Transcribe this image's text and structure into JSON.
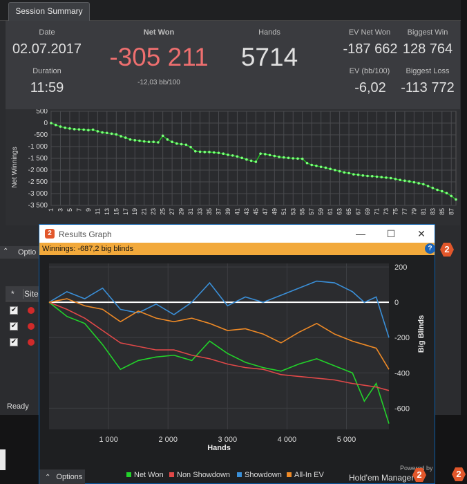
{
  "session_summary": {
    "tab_label": "Session Summary",
    "date_label": "Date",
    "date_value": "02.07.2017",
    "duration_label": "Duration",
    "duration_value": "11:59",
    "net_won_label": "Net Won",
    "net_won_value": "-305 211",
    "net_won_sub": "-12,03 bb/100",
    "hands_label": "Hands",
    "hands_value": "5714",
    "ev_net_won_label": "EV Net Won",
    "ev_net_won_value": "-187 662",
    "biggest_win_label": "Biggest Win",
    "biggest_win_value": "128 764",
    "ev_bb_label": "EV (bb/100)",
    "ev_bb_value": "-6,02",
    "biggest_loss_label": "Biggest Loss",
    "biggest_loss_value": "-113 772"
  },
  "left_panel": {
    "options_label": "Optio",
    "col_star": "*",
    "col_site": "Site",
    "check_glyph": "✔",
    "status": "Ready"
  },
  "results_window": {
    "title": "Results Graph",
    "logo_text": "2",
    "minimize": "—",
    "maximize": "☐",
    "close": "✕",
    "winnings_text": "Winnings: -687,2 big blinds",
    "help": "?",
    "legend": [
      "Net Won",
      "Non Showdown",
      "Showdown",
      "All-In EV"
    ],
    "powered_by": "Powered by",
    "brand": "Hold'em Manager",
    "options_label": "Options",
    "options_chevron": "⌃"
  },
  "colors": {
    "net_won": "#22d22a",
    "non_showdown": "#e04848",
    "showdown": "#3a8fd8",
    "all_in_ev": "#ef8a26",
    "small_graph_line": "#1bc31b",
    "small_graph_points": "#7dff7d"
  },
  "chart_data": [
    {
      "type": "line",
      "xlabel": "",
      "ylabel": "Net Winnings",
      "ylim": [
        -3500,
        500
      ],
      "yticks": [
        500,
        0,
        -500,
        -1000,
        -1500,
        -2000,
        -2500,
        -3000,
        -3500
      ],
      "xticks": [
        1,
        3,
        5,
        7,
        9,
        11,
        13,
        15,
        17,
        19,
        21,
        23,
        25,
        27,
        29,
        31,
        33,
        35,
        37,
        39,
        41,
        43,
        45,
        47,
        49,
        51,
        53,
        55,
        57,
        59,
        61,
        63,
        65,
        67,
        69,
        71,
        73,
        75,
        77,
        79,
        81,
        83,
        85,
        87
      ],
      "grid": true,
      "x": [
        1,
        2,
        3,
        4,
        5,
        6,
        7,
        8,
        9,
        10,
        11,
        12,
        13,
        14,
        15,
        16,
        17,
        18,
        19,
        20,
        21,
        22,
        23,
        24,
        25,
        26,
        27,
        28,
        29,
        30,
        31,
        32,
        33,
        34,
        35,
        36,
        37,
        38,
        39,
        40,
        41,
        42,
        43,
        44,
        45,
        46,
        47,
        48,
        49,
        50,
        51,
        52,
        53,
        54,
        55,
        56,
        57,
        58,
        59,
        60,
        61,
        62,
        63,
        64,
        65,
        66,
        67,
        68,
        69,
        70,
        71,
        72,
        73,
        74,
        75,
        76,
        77,
        78,
        79,
        80,
        81,
        82,
        83,
        84,
        85,
        86,
        87,
        88
      ],
      "y": [
        0,
        -80,
        -150,
        -200,
        -230,
        -260,
        -270,
        -280,
        -300,
        -280,
        -350,
        -400,
        -420,
        -450,
        -480,
        -560,
        -620,
        -700,
        -730,
        -750,
        -780,
        -800,
        -800,
        -820,
        -540,
        -700,
        -800,
        -870,
        -900,
        -920,
        -1020,
        -1200,
        -1220,
        -1230,
        -1230,
        -1250,
        -1270,
        -1300,
        -1350,
        -1380,
        -1420,
        -1480,
        -1550,
        -1600,
        -1650,
        -1300,
        -1320,
        -1360,
        -1400,
        -1440,
        -1460,
        -1480,
        -1500,
        -1510,
        -1520,
        -1700,
        -1780,
        -1820,
        -1860,
        -1900,
        -1950,
        -2000,
        -2050,
        -2100,
        -2130,
        -2180,
        -2200,
        -2230,
        -2250,
        -2260,
        -2280,
        -2300,
        -2320,
        -2340,
        -2380,
        -2420,
        -2450,
        -2480,
        -2520,
        -2560,
        -2600,
        -2680,
        -2760,
        -2840,
        -2900,
        -2980,
        -3100,
        -3250
      ]
    },
    {
      "type": "line",
      "xlabel": "Hands",
      "ylabel": "Big Blinds",
      "xlim": [
        0,
        5714
      ],
      "ylim": [
        -720,
        220
      ],
      "xticks": [
        1000,
        2000,
        3000,
        4000,
        5000
      ],
      "xtick_labels": [
        "1 000",
        "2 000",
        "3 000",
        "4 000",
        "5 000"
      ],
      "yticks": [
        200,
        0,
        -200,
        -400,
        -600
      ],
      "grid": true,
      "x": [
        0,
        300,
        600,
        900,
        1200,
        1500,
        1800,
        2100,
        2400,
        2700,
        3000,
        3300,
        3600,
        3900,
        4200,
        4500,
        4800,
        5100,
        5300,
        5500,
        5714
      ],
      "series": [
        {
          "name": "Net Won",
          "values": [
            0,
            -80,
            -120,
            -240,
            -380,
            -330,
            -310,
            -300,
            -330,
            -220,
            -290,
            -340,
            -370,
            -390,
            -350,
            -320,
            -360,
            -400,
            -560,
            -460,
            -687
          ]
        },
        {
          "name": "Non Showdown",
          "values": [
            0,
            -40,
            -90,
            -160,
            -230,
            -250,
            -270,
            -270,
            -300,
            -320,
            -350,
            -370,
            -380,
            -410,
            -420,
            -430,
            -440,
            -460,
            -470,
            -480,
            -500
          ]
        },
        {
          "name": "Showdown",
          "values": [
            0,
            60,
            20,
            80,
            -40,
            -60,
            -10,
            -70,
            0,
            110,
            -20,
            30,
            0,
            40,
            80,
            120,
            110,
            60,
            0,
            30,
            -200
          ]
        },
        {
          "name": "All-In EV",
          "values": [
            0,
            20,
            -20,
            -40,
            -110,
            -50,
            -90,
            -110,
            -90,
            -120,
            -160,
            -150,
            -180,
            -230,
            -170,
            -120,
            -180,
            -220,
            -240,
            -260,
            -380
          ]
        }
      ]
    }
  ]
}
